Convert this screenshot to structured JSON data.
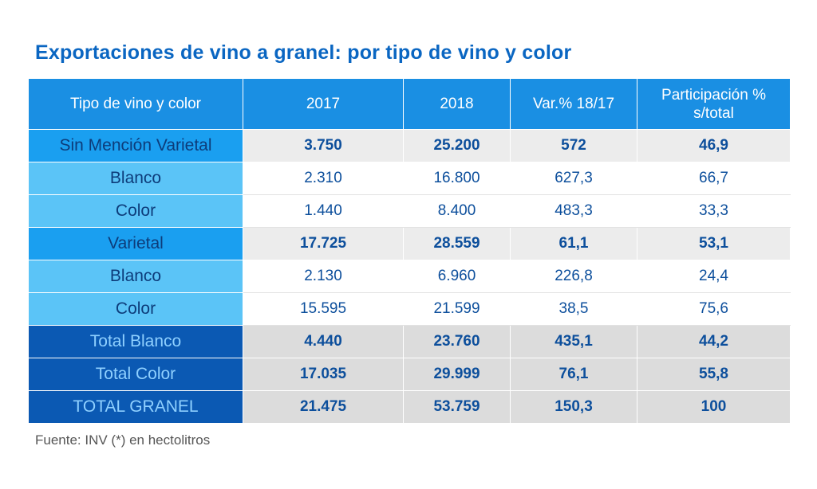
{
  "title": "Exportaciones de vino a granel: por tipo de vino y color",
  "footer": "Fuente: INV (*) en hectolitros",
  "chart_data": {
    "type": "table",
    "title": "Exportaciones de vino a granel: por tipo de vino y color",
    "columns": [
      "Tipo de vino y color",
      "2017",
      "2018",
      "Var.% 18/17",
      "Participación % s/total"
    ],
    "header_lines": {
      "participacion_line1": "Participación %",
      "participacion_line2": "s/total"
    },
    "rows": [
      {
        "kind": "group",
        "cells": [
          "Sin Mención Varietal",
          "3.750",
          "25.200",
          "572",
          "46,9"
        ]
      },
      {
        "kind": "sub",
        "cells": [
          "Blanco",
          "2.310",
          "16.800",
          "627,3",
          "66,7"
        ]
      },
      {
        "kind": "sub",
        "cells": [
          "Color",
          "1.440",
          "8.400",
          "483,3",
          "33,3"
        ]
      },
      {
        "kind": "group",
        "cells": [
          "Varietal",
          "17.725",
          "28.559",
          "61,1",
          "53,1"
        ]
      },
      {
        "kind": "sub",
        "cells": [
          "Blanco",
          "2.130",
          "6.960",
          "226,8",
          "24,4"
        ]
      },
      {
        "kind": "sub",
        "cells": [
          "Color",
          "15.595",
          "21.599",
          "38,5",
          "75,6"
        ]
      },
      {
        "kind": "total",
        "cells": [
          "Total Blanco",
          "4.440",
          "23.760",
          "435,1",
          "44,2"
        ]
      },
      {
        "kind": "total",
        "cells": [
          "Total Color",
          "17.035",
          "29.999",
          "76,1",
          "55,8"
        ]
      },
      {
        "kind": "total",
        "cells": [
          "TOTAL GRANEL",
          "21.475",
          "53.759",
          "150,3",
          "100"
        ]
      }
    ]
  }
}
